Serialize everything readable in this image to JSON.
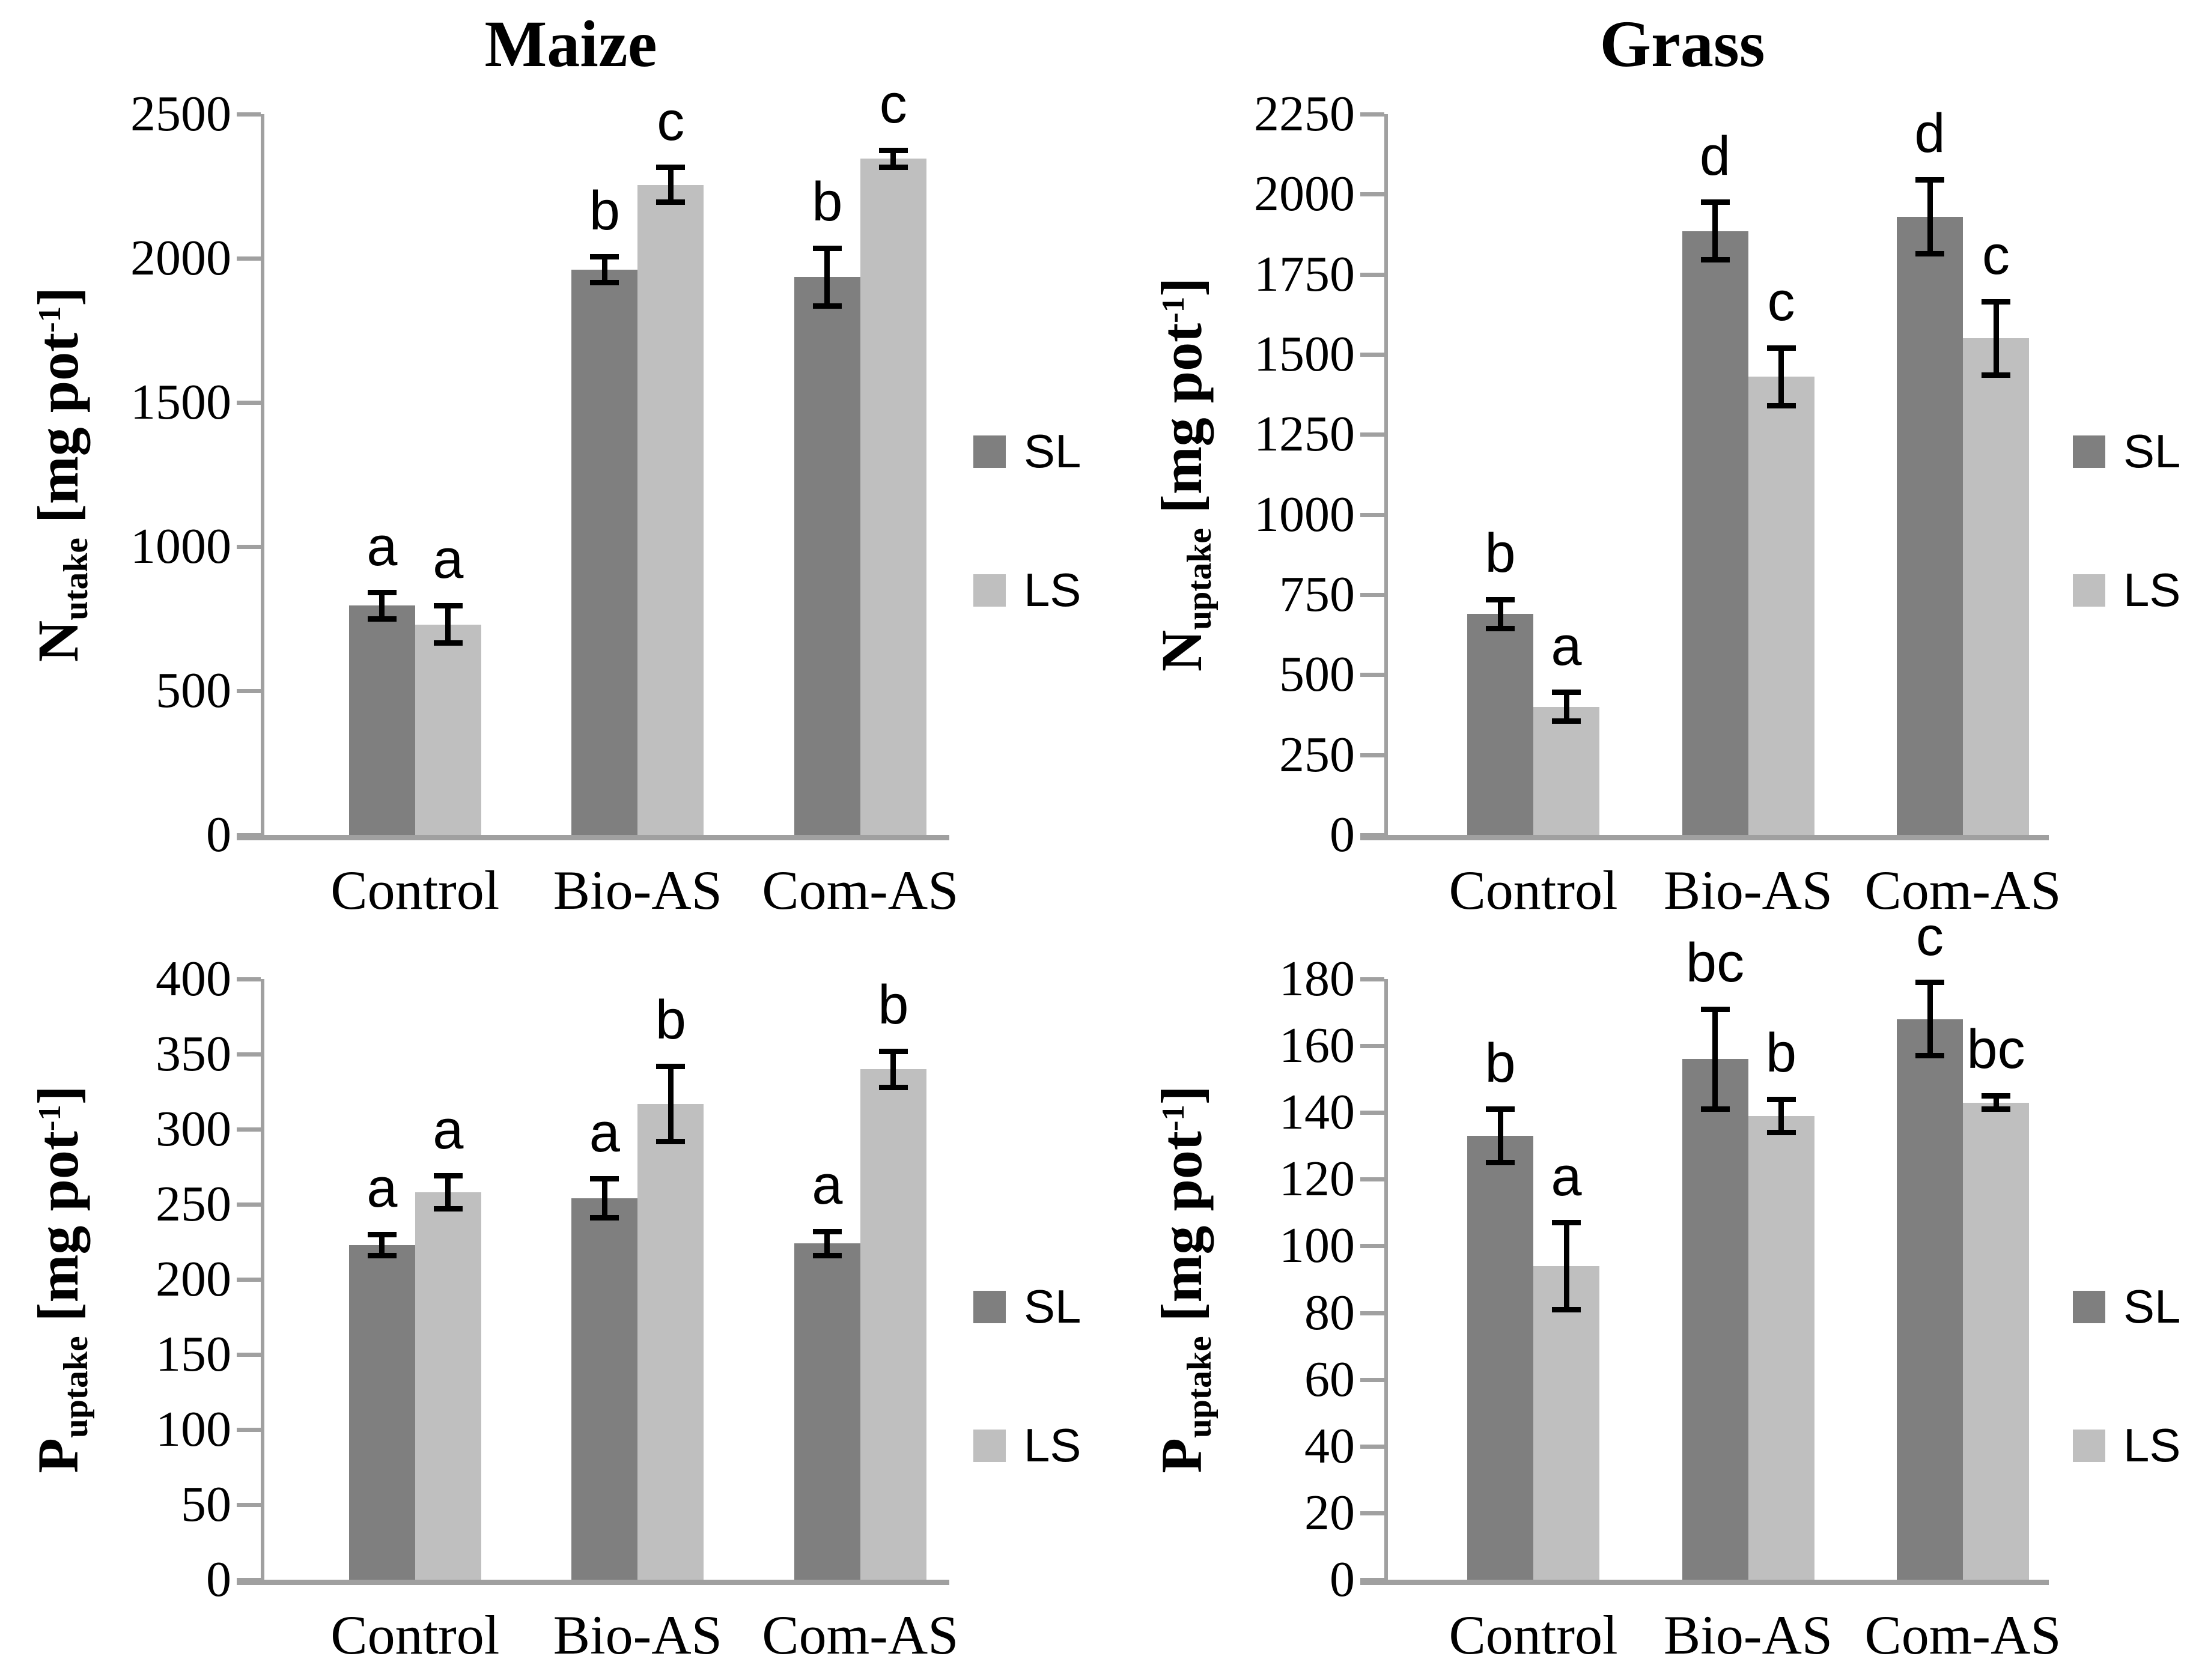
{
  "figure": {
    "background": "#ffffff",
    "column_titles": [
      "Maize",
      "Grass"
    ]
  },
  "colors": {
    "axis": "#a0a0a0",
    "error_bar": "#000000",
    "text": "#000000",
    "series_sl": "#7f7f7f",
    "series_ls": "#bfbfbf"
  },
  "legend": {
    "labels": [
      "SL",
      "LS"
    ]
  },
  "chart_data": [
    {
      "id": "maize-n-uptake",
      "type": "bar",
      "title": "Maize",
      "ylabel": {
        "main": "N",
        "sub": "utake",
        "unit_open": " [mg pot",
        "unit_sup": "-1",
        "unit_close": "]"
      },
      "ylim": [
        0,
        2500
      ],
      "ytick_step": 500,
      "yticks": [
        0,
        500,
        1000,
        1500,
        2000,
        2500
      ],
      "grid": false,
      "legend_position": "right",
      "categories": [
        "Control",
        "Bio-AS",
        "Com-AS"
      ],
      "series": [
        {
          "name": "SL",
          "color": "#7f7f7f",
          "values": [
            795,
            1960,
            1935
          ],
          "errors": [
            45,
            45,
            100
          ],
          "sig_letters": [
            "a",
            "b",
            "b"
          ]
        },
        {
          "name": "LS",
          "color": "#bfbfbf",
          "values": [
            730,
            2255,
            2345
          ],
          "errors": [
            65,
            60,
            30
          ],
          "sig_letters": [
            "a",
            "c",
            "c"
          ]
        }
      ]
    },
    {
      "id": "grass-n-uptake",
      "type": "bar",
      "title": "Grass",
      "ylabel": {
        "main": "N",
        "sub": "uptake",
        "unit_open": " [mg pot",
        "unit_sup": "-1",
        "unit_close": "]"
      },
      "ylim": [
        0,
        2250
      ],
      "ytick_step": 250,
      "yticks": [
        0,
        250,
        500,
        750,
        1000,
        1250,
        1500,
        1750,
        2000,
        2250
      ],
      "grid": false,
      "legend_position": "right",
      "categories": [
        "Control",
        "Bio-AS",
        "Com-AS"
      ],
      "series": [
        {
          "name": "SL",
          "color": "#7f7f7f",
          "values": [
            690,
            1885,
            1930
          ],
          "errors": [
            45,
            90,
            115
          ],
          "sig_letters": [
            "b",
            "d",
            "d"
          ]
        },
        {
          "name": "LS",
          "color": "#bfbfbf",
          "values": [
            400,
            1430,
            1550
          ],
          "errors": [
            45,
            90,
            115
          ],
          "sig_letters": [
            "a",
            "c",
            "c"
          ]
        }
      ]
    },
    {
      "id": "maize-p-uptake",
      "type": "bar",
      "title": "",
      "ylabel": {
        "main": "P",
        "sub": "uptake",
        "unit_open": " [mg pot",
        "unit_sup": "-1",
        "unit_close": "]"
      },
      "ylim": [
        0,
        400
      ],
      "ytick_step": 50,
      "yticks": [
        0,
        50,
        100,
        150,
        200,
        250,
        300,
        350,
        400
      ],
      "grid": false,
      "legend_position": "right",
      "categories": [
        "Control",
        "Bio-AS",
        "Com-AS"
      ],
      "series": [
        {
          "name": "SL",
          "color": "#7f7f7f",
          "values": [
            223,
            254,
            224
          ],
          "errors": [
            7,
            13,
            8
          ],
          "sig_letters": [
            "a",
            "a",
            "a"
          ]
        },
        {
          "name": "LS",
          "color": "#bfbfbf",
          "values": [
            258,
            317,
            340
          ],
          "errors": [
            11,
            25,
            12
          ],
          "sig_letters": [
            "a",
            "b",
            "b"
          ]
        }
      ]
    },
    {
      "id": "grass-p-uptake",
      "type": "bar",
      "title": "",
      "ylabel": {
        "main": "P",
        "sub": "uptake",
        "unit_open": " [mg pot",
        "unit_sup": "-1",
        "unit_close": "]"
      },
      "ylim": [
        0,
        180
      ],
      "ytick_step": 20,
      "yticks": [
        0,
        20,
        40,
        60,
        80,
        100,
        120,
        140,
        160,
        180
      ],
      "grid": false,
      "legend_position": "right",
      "categories": [
        "Control",
        "Bio-AS",
        "Com-AS"
      ],
      "series": [
        {
          "name": "SL",
          "color": "#7f7f7f",
          "values": [
            133,
            156,
            168
          ],
          "errors": [
            8,
            15,
            11
          ],
          "sig_letters": [
            "b",
            "bc",
            "c"
          ]
        },
        {
          "name": "LS",
          "color": "#bfbfbf",
          "values": [
            94,
            139,
            143
          ],
          "errors": [
            13,
            5,
            2
          ],
          "sig_letters": [
            "a",
            "b",
            "bc"
          ]
        }
      ]
    }
  ]
}
